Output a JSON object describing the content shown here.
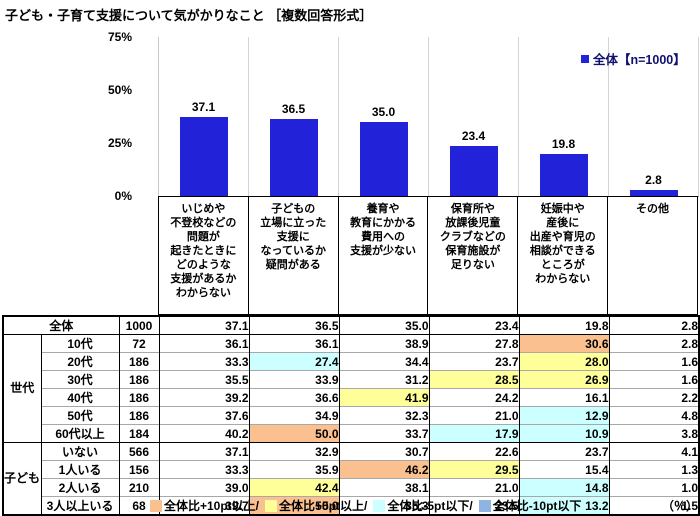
{
  "page": {
    "title": "子ども・子育て支援について気がかりなこと ［複数回答形式］"
  },
  "colors": {
    "bar": "#2222d8",
    "plus10pt": "#FAC090",
    "plus5pt": "#FFFF99",
    "minus5pt": "#CCFFFF",
    "minus10pt": "#8DB4E2"
  },
  "chart_data": {
    "type": "bar",
    "title": "子ども・子育て支援について気がかりなこと ［複数回答形式］",
    "legend": [
      "全体【n=1000】"
    ],
    "legend_position": "top-right",
    "ylim": [
      0,
      75
    ],
    "yticks": [
      "0%",
      "25%",
      "50%",
      "75%"
    ],
    "grid": "vertical category separators only",
    "categories": [
      "いじめや\n不登校などの\n問題が\n起きたときに\nどのような\n支援があるか\nわからない",
      "子どもの\n立場に立った\n支援に\nなっているか\n疑問がある",
      "養育や\n教育にかかる\n費用への\n支援が少ない",
      "保育所や\n放課後児童\nクラブなどの\n保育施設が\n足りない",
      "妊娠中や\n産後に\n出産や育児の\n相談ができる\nところが\nわからない",
      "その他"
    ],
    "values": [
      37.1,
      36.5,
      35.0,
      23.4,
      19.8,
      2.8
    ]
  },
  "table": {
    "rows": [
      {
        "group": "",
        "group_span": 0,
        "label": "全体",
        "n": "1000",
        "values": [
          "37.1",
          "36.5",
          "35.0",
          "23.4",
          "19.8",
          "2.8"
        ],
        "hl": [
          "",
          "",
          "",
          "",
          "",
          ""
        ]
      },
      {
        "group": "世代",
        "group_span": 6,
        "label": "10代",
        "n": "72",
        "values": [
          "36.1",
          "36.1",
          "38.9",
          "27.8",
          "30.6",
          "2.8"
        ],
        "hl": [
          "",
          "",
          "",
          "",
          "p10",
          ""
        ]
      },
      {
        "group": "",
        "group_span": 0,
        "label": "20代",
        "n": "186",
        "values": [
          "33.3",
          "27.4",
          "34.4",
          "23.7",
          "28.0",
          "1.6"
        ],
        "hl": [
          "",
          "m5",
          "",
          "",
          "p5",
          ""
        ]
      },
      {
        "group": "",
        "group_span": 0,
        "label": "30代",
        "n": "186",
        "values": [
          "35.5",
          "33.9",
          "31.2",
          "28.5",
          "26.9",
          "1.6"
        ],
        "hl": [
          "",
          "",
          "",
          "p5",
          "p5",
          ""
        ]
      },
      {
        "group": "",
        "group_span": 0,
        "label": "40代",
        "n": "186",
        "values": [
          "39.2",
          "36.6",
          "41.9",
          "24.2",
          "16.1",
          "2.2"
        ],
        "hl": [
          "",
          "",
          "p5",
          "",
          "",
          ""
        ]
      },
      {
        "group": "",
        "group_span": 0,
        "label": "50代",
        "n": "186",
        "values": [
          "37.6",
          "34.9",
          "32.3",
          "21.0",
          "12.9",
          "4.8"
        ],
        "hl": [
          "",
          "",
          "",
          "",
          "m5",
          ""
        ]
      },
      {
        "group": "",
        "group_span": 0,
        "label": "60代以上",
        "n": "184",
        "values": [
          "40.2",
          "50.0",
          "33.7",
          "17.9",
          "10.9",
          "3.8"
        ],
        "hl": [
          "",
          "p10",
          "",
          "m5",
          "m5",
          ""
        ]
      },
      {
        "group": "子ども\nの\n人数",
        "group_span": 4,
        "label": "いない",
        "n": "566",
        "values": [
          "37.1",
          "32.9",
          "30.7",
          "22.6",
          "23.7",
          "4.1"
        ],
        "hl": [
          "",
          "",
          "",
          "",
          "",
          ""
        ]
      },
      {
        "group": "",
        "group_span": 0,
        "label": "1人いる",
        "n": "156",
        "values": [
          "33.3",
          "35.9",
          "46.2",
          "29.5",
          "15.4",
          "1.3"
        ],
        "hl": [
          "",
          "",
          "p10",
          "p5",
          "",
          ""
        ]
      },
      {
        "group": "",
        "group_span": 0,
        "label": "2人いる",
        "n": "210",
        "values": [
          "39.0",
          "42.4",
          "38.1",
          "21.0",
          "14.8",
          "1.0"
        ],
        "hl": [
          "",
          "p5",
          "",
          "",
          "m5",
          ""
        ]
      },
      {
        "group": "",
        "group_span": 0,
        "label": "3人以上いる",
        "n": "68",
        "values": [
          "39.7",
          "50.0",
          "35.3",
          "23.5",
          "13.2",
          "1.5"
        ],
        "hl": [
          "",
          "p10",
          "",
          "",
          "m5",
          ""
        ]
      }
    ]
  },
  "footer": {
    "items": [
      {
        "label": "全体比+10pt以上/",
        "type": "plus10pt"
      },
      {
        "label": "全体比+5pt以上/",
        "type": "plus5pt"
      },
      {
        "label": "全体比-5pt以下/",
        "type": "minus5pt"
      },
      {
        "label": "全体比-10pt以下",
        "type": "minus10pt"
      }
    ],
    "unit": "（％）"
  }
}
